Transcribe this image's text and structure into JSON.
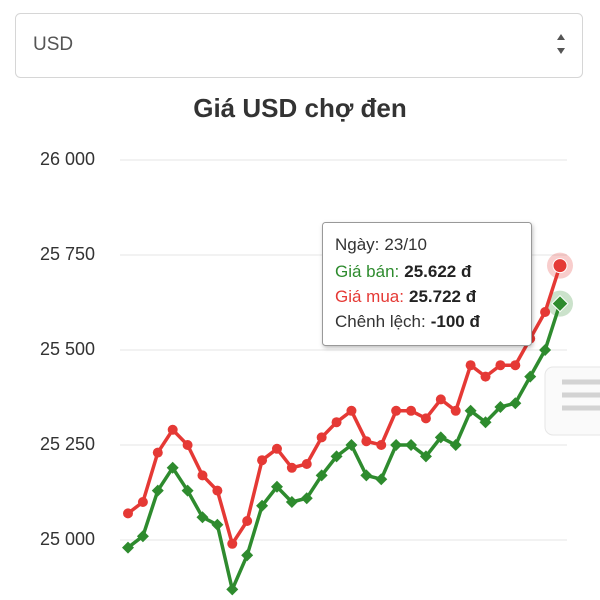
{
  "dropdown": {
    "selected": "USD"
  },
  "chart_data": {
    "type": "line",
    "title": "Giá USD chợ đen",
    "categories": [
      null,
      null,
      null,
      null,
      null,
      null,
      null,
      null,
      null,
      null,
      null,
      null,
      null,
      null,
      null,
      null,
      null,
      null,
      null,
      null,
      null,
      null,
      null,
      null,
      null,
      null,
      null,
      null,
      null,
      "23/10"
    ],
    "series": [
      {
        "color": "#2e8b2e",
        "marker": "diamond",
        "values": [
          24980,
          25010,
          25130,
          25190,
          25130,
          25060,
          25040,
          24870,
          24960,
          25090,
          25140,
          25100,
          25110,
          25170,
          25220,
          25250,
          25170,
          25160,
          25250,
          25250,
          25220,
          25270,
          25250,
          25340,
          25310,
          25350,
          25360,
          25430,
          25500,
          25622
        ]
      },
      {
        "color": "#e53935",
        "marker": "circle",
        "values": [
          25070,
          25100,
          25230,
          25290,
          25250,
          25170,
          25130,
          24990,
          25050,
          25210,
          25240,
          25190,
          25200,
          25270,
          25310,
          25340,
          25260,
          25250,
          25340,
          25340,
          25320,
          25370,
          25340,
          25460,
          25430,
          25460,
          25460,
          25530,
          25600,
          25722
        ]
      }
    ],
    "ylim": [
      24850,
      26000
    ],
    "yticks": [
      {
        "value": 25000,
        "label": "25 000"
      },
      {
        "value": 25250,
        "label": "25 250"
      },
      {
        "value": 25500,
        "label": "25 500"
      },
      {
        "value": 25750,
        "label": "25 750"
      },
      {
        "value": 26000,
        "label": "26 000"
      }
    ],
    "grid": true,
    "tooltip": {
      "date_label": "Ngày:",
      "rows": [
        {
          "label": "Giá bán:",
          "value": "25.622 đ",
          "color": "#2e8b2e"
        },
        {
          "label": "Giá mua:",
          "value": "25.722 đ",
          "color": "#e53935"
        },
        {
          "label": "Chênh lệch:",
          "value": "-100 đ",
          "color": "#333"
        }
      ]
    }
  }
}
